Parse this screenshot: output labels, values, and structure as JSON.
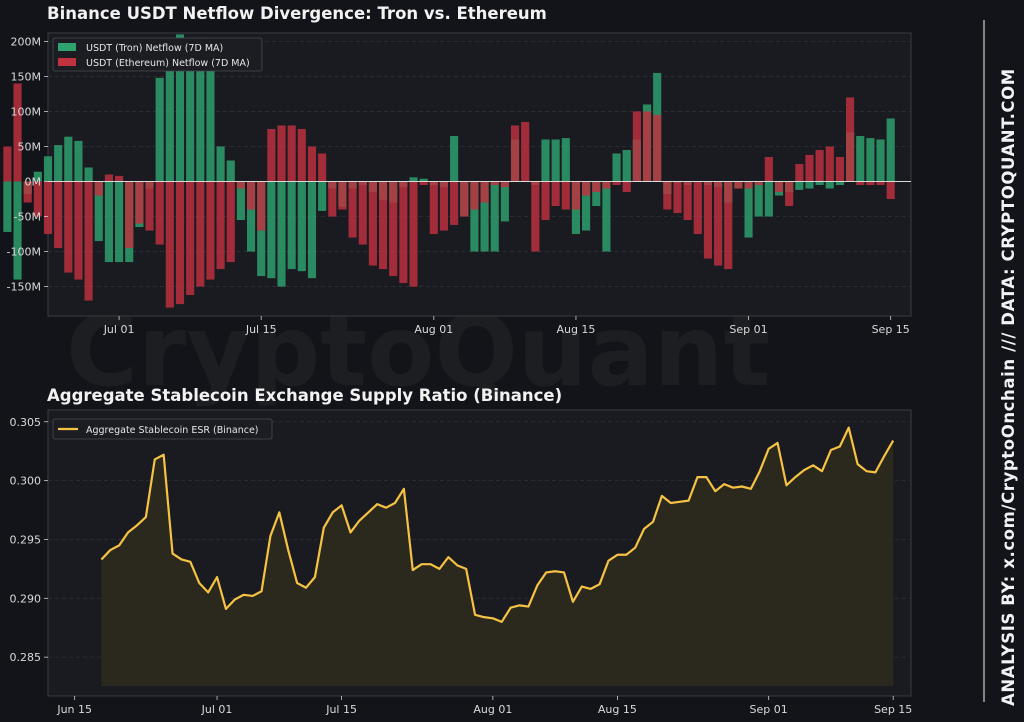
{
  "branding": {
    "watermark": "CryptoQuant",
    "side_text": "ANALYSIS BY: x.com/CryptoOnchain   ///   DATA: CRYPTOQUANT.COM"
  },
  "colors": {
    "background": "#131419",
    "plot_bg": "#1a1b21",
    "tron": "#2ea36f",
    "ethereum": "#c1313e",
    "esr_line": "#f5c243",
    "esr_fill": "#2e2a1e"
  },
  "chart_data": [
    {
      "type": "bar",
      "title": "Binance USDT Netflow Divergence: Tron vs. Ethereum",
      "xlabel": "",
      "ylabel": "",
      "ylim": [
        -192,
        212
      ],
      "xlim": [
        "2025-06-24",
        "2025-09-17"
      ],
      "grid": true,
      "legend_position": "top-left",
      "yticks": [
        -150,
        -100,
        -50,
        0,
        50,
        100,
        150,
        200
      ],
      "ytick_labels": [
        "-150M",
        "-100M",
        "-50M",
        "0M",
        "50M",
        "100M",
        "150M",
        "200M"
      ],
      "xticks": [
        "2025-07-01",
        "2025-07-15",
        "2025-08-01",
        "2025-08-15",
        "2025-09-01",
        "2025-09-15"
      ],
      "xtick_labels": [
        "Jul 01",
        "Jul 15",
        "Aug 01",
        "Aug 15",
        "Sep 01",
        "Sep 15"
      ],
      "x_start": "2025-06-20",
      "x_end": "2025-09-15",
      "series": [
        {
          "name": "USDT (Tron) Netflow (7D MA)",
          "values": [
            -72,
            -140,
            -18,
            14,
            36,
            52,
            64,
            58,
            20,
            -85,
            -115,
            -115,
            -115,
            -65,
            -10,
            148,
            205,
            210,
            200,
            205,
            190,
            50,
            30,
            -55,
            -100,
            -135,
            -138,
            -150,
            -125,
            -128,
            -138,
            -42,
            -10,
            -36,
            -10,
            -5,
            -15,
            -26,
            -30,
            -8,
            6,
            4,
            -5,
            -8,
            65,
            -50,
            -100,
            -100,
            -100,
            -57,
            60,
            0,
            -5,
            60,
            60,
            62,
            -75,
            -70,
            -35,
            -100,
            40,
            45,
            60,
            110,
            155,
            -18,
            -2,
            -5,
            0,
            -5,
            -8,
            -30,
            -10,
            -80,
            -50,
            -50,
            -20,
            -15,
            -12,
            -10,
            -5,
            -10,
            -5,
            70,
            65,
            62,
            60,
            90
          ]
        },
        {
          "name": "USDT (Ethereum) Netflow (7D MA)",
          "values": [
            50,
            140,
            -30,
            -50,
            -75,
            -95,
            -130,
            -140,
            -170,
            -20,
            10,
            8,
            -95,
            -60,
            -70,
            -90,
            -180,
            -175,
            -162,
            -150,
            -140,
            -125,
            -115,
            -10,
            -40,
            -70,
            75,
            80,
            80,
            75,
            50,
            40,
            -50,
            -40,
            -80,
            -90,
            -120,
            -125,
            -135,
            -145,
            -150,
            -5,
            -75,
            -70,
            -62,
            -50,
            -40,
            -30,
            -5,
            -8,
            80,
            85,
            -100,
            -55,
            -35,
            -40,
            -40,
            -20,
            -15,
            -10,
            -5,
            -15,
            100,
            100,
            95,
            -40,
            -45,
            -55,
            -75,
            -110,
            -120,
            -125,
            -10,
            -10,
            -5,
            35,
            -15,
            -35,
            25,
            38,
            45,
            50,
            35,
            120,
            -5,
            -5,
            -5,
            -25
          ]
        }
      ]
    },
    {
      "type": "area",
      "title": "Aggregate Stablecoin Exchange Supply Ratio (Binance)",
      "xlabel": "",
      "ylabel": "",
      "ylim": [
        0.2817,
        0.306
      ],
      "xlim": [
        "2025-06-12",
        "2025-09-17"
      ],
      "grid": true,
      "legend_position": "top-left",
      "yticks": [
        0.285,
        0.29,
        0.295,
        0.3,
        0.305
      ],
      "ytick_labels": [
        "0.285",
        "0.290",
        "0.295",
        "0.300",
        "0.305"
      ],
      "xticks": [
        "2025-06-15",
        "2025-07-01",
        "2025-07-15",
        "2025-08-01",
        "2025-08-15",
        "2025-09-01",
        "2025-09-15"
      ],
      "xtick_labels": [
        "Jun 15",
        "Jul 01",
        "Jul 15",
        "Aug 01",
        "Aug 15",
        "Sep 01",
        "Sep 15"
      ],
      "x_start": "2025-06-18",
      "x_end": "2025-09-15",
      "series": [
        {
          "name": "Aggregate Stablecoin ESR (Binance)",
          "values": [
            0.2933,
            0.2941,
            0.2945,
            0.2956,
            0.2962,
            0.2969,
            0.3018,
            0.3022,
            0.2938,
            0.2933,
            0.2931,
            0.2913,
            0.2905,
            0.2918,
            0.2891,
            0.2899,
            0.2903,
            0.2902,
            0.2906,
            0.2953,
            0.2973,
            0.2941,
            0.2913,
            0.2909,
            0.2918,
            0.296,
            0.2973,
            0.2979,
            0.2956,
            0.2966,
            0.2973,
            0.298,
            0.2977,
            0.2981,
            0.2993,
            0.2924,
            0.2929,
            0.2929,
            0.2925,
            0.2935,
            0.2928,
            0.2925,
            0.2886,
            0.2884,
            0.2883,
            0.288,
            0.2892,
            0.2894,
            0.2893,
            0.2911,
            0.2922,
            0.2923,
            0.2922,
            0.2897,
            0.291,
            0.2908,
            0.2912,
            0.2932,
            0.2937,
            0.2937,
            0.2943,
            0.2959,
            0.2965,
            0.2987,
            0.2981,
            0.2982,
            0.2983,
            0.3003,
            0.3003,
            0.2991,
            0.2997,
            0.2994,
            0.2995,
            0.2993,
            0.3008,
            0.3027,
            0.3032,
            0.2996,
            0.3003,
            0.3009,
            0.3013,
            0.3008,
            0.3026,
            0.3029,
            0.3045,
            0.3014,
            0.3008,
            0.3007,
            0.3021,
            0.3034
          ]
        }
      ]
    }
  ]
}
